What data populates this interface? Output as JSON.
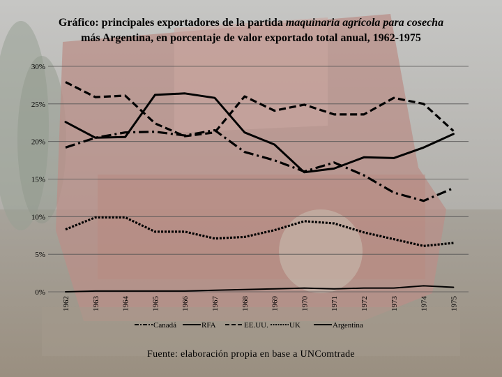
{
  "title": {
    "part1": "Gráfico: principales exportadores de la partida ",
    "part2": "maquinaria agrícola para cosecha",
    "part3": "más Argentina, en porcentaje de valor exportado total anual, 1962-1975"
  },
  "source": "Fuente: elaboración propia en base a UNComtrade",
  "chart_data": {
    "type": "line",
    "title": "Gráfico: principales exportadores de la partida maquinaria agrícola para cosecha más Argentina, en porcentaje de valor exportado total anual, 1962-1975",
    "x": [
      "1962",
      "1963",
      "1964",
      "1965",
      "1966",
      "1967",
      "1968",
      "1969",
      "1970",
      "1971",
      "1972",
      "1973",
      "1974",
      "1975"
    ],
    "ylim": [
      0,
      30
    ],
    "yticks": [
      "0%",
      "5%",
      "10%",
      "15%",
      "20%",
      "25%",
      "30%"
    ],
    "grid": true,
    "legend_position": "bottom",
    "series": [
      {
        "name": "Canadá",
        "style": "dash-dot",
        "values": [
          19.2,
          20.5,
          21.2,
          21.3,
          20.8,
          21.5,
          18.6,
          17.5,
          16.0,
          17.2,
          15.5,
          13.2,
          12.1,
          13.8
        ]
      },
      {
        "name": "RFA",
        "style": "solid",
        "values": [
          22.6,
          20.5,
          20.6,
          26.2,
          26.4,
          25.8,
          21.2,
          19.6,
          15.9,
          16.4,
          17.9,
          17.8,
          19.2,
          21.0
        ]
      },
      {
        "name": "EE.UU.",
        "style": "dashed",
        "values": [
          27.9,
          25.9,
          26.1,
          22.4,
          20.7,
          21.2,
          26.0,
          24.1,
          24.9,
          23.6,
          23.6,
          25.8,
          25.0,
          21.4
        ]
      },
      {
        "name": "UK",
        "style": "dotted",
        "values": [
          8.3,
          9.9,
          9.9,
          8.0,
          8.0,
          7.1,
          7.3,
          8.2,
          9.4,
          9.1,
          7.9,
          7.0,
          6.1,
          6.5
        ]
      },
      {
        "name": "Argentina",
        "style": "solid-thin",
        "values": [
          0.0,
          0.1,
          0.1,
          0.1,
          0.1,
          0.2,
          0.3,
          0.4,
          0.5,
          0.4,
          0.5,
          0.5,
          0.8,
          0.6
        ]
      }
    ]
  }
}
